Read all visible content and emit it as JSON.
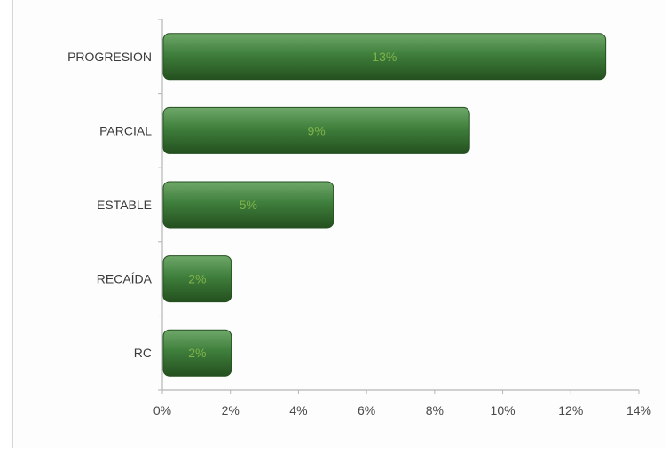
{
  "chart_data": {
    "type": "bar",
    "orientation": "horizontal",
    "categories": [
      "PROGRESION",
      "PARCIAL",
      "ESTABLE",
      "RECAÍDA",
      "RC"
    ],
    "values": [
      13,
      9,
      5,
      2,
      2
    ],
    "data_labels": [
      "13%",
      "9%",
      "5%",
      "2%",
      "2%"
    ],
    "x_ticks": [
      "0%",
      "2%",
      "4%",
      "6%",
      "8%",
      "10%",
      "12%",
      "14%"
    ],
    "xlim": [
      0,
      14
    ],
    "grid": false,
    "legend": "none",
    "bar_color": "#3f7f3c",
    "bar_highlight": "#6fa86a",
    "bar_shadow": "#24501f",
    "label_color": "#7fb34a",
    "title": "",
    "xlabel": "",
    "ylabel": ""
  }
}
